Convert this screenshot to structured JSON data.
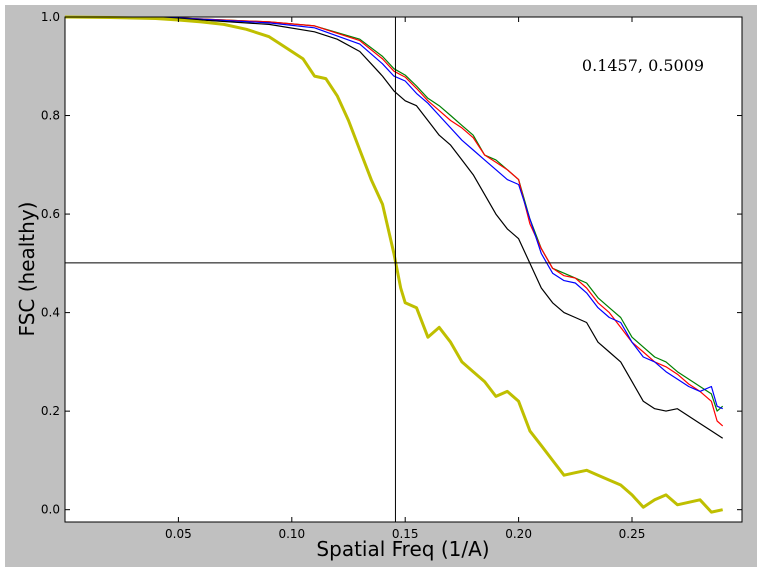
{
  "chart_data": {
    "type": "line",
    "xlabel": "Spatial Freq (1/A)",
    "ylabel": "FSC (healthy)",
    "xlim": [
      0.0,
      0.2985
    ],
    "ylim": [
      -0.025,
      1.0
    ],
    "xticks": [
      0.05,
      0.1,
      0.15,
      0.2,
      0.25
    ],
    "xtick_labels": [
      "0.05",
      "0.10",
      "0.15",
      "0.20",
      "0.25"
    ],
    "yticks": [
      0.0,
      0.2,
      0.4,
      0.6,
      0.8,
      1.0
    ],
    "ytick_labels": [
      "0.0",
      "0.2",
      "0.4",
      "0.6",
      "0.8",
      "1.0"
    ],
    "grid": false,
    "annotation": "0.1457, 0.5009",
    "crosshair": {
      "x": 0.1457,
      "y": 0.5009
    },
    "colors": {
      "background": "#c0c0c0",
      "plot": "#ffffff",
      "axes": "#000000"
    },
    "series": [
      {
        "color": "#008000",
        "linewidth": 1.2,
        "points": [
          [
            0.0,
            1.0
          ],
          [
            0.05,
            0.998
          ],
          [
            0.09,
            0.99
          ],
          [
            0.11,
            0.982
          ],
          [
            0.13,
            0.955
          ],
          [
            0.14,
            0.92
          ],
          [
            0.145,
            0.895
          ],
          [
            0.15,
            0.882
          ],
          [
            0.155,
            0.86
          ],
          [
            0.16,
            0.835
          ],
          [
            0.165,
            0.82
          ],
          [
            0.17,
            0.8
          ],
          [
            0.175,
            0.78
          ],
          [
            0.18,
            0.76
          ],
          [
            0.185,
            0.72
          ],
          [
            0.19,
            0.71
          ],
          [
            0.195,
            0.69
          ],
          [
            0.2,
            0.67
          ],
          [
            0.205,
            0.59
          ],
          [
            0.21,
            0.53
          ],
          [
            0.215,
            0.49
          ],
          [
            0.22,
            0.48
          ],
          [
            0.225,
            0.47
          ],
          [
            0.23,
            0.46
          ],
          [
            0.235,
            0.43
          ],
          [
            0.24,
            0.41
          ],
          [
            0.245,
            0.39
          ],
          [
            0.25,
            0.35
          ],
          [
            0.255,
            0.33
          ],
          [
            0.26,
            0.31
          ],
          [
            0.265,
            0.3
          ],
          [
            0.27,
            0.28
          ],
          [
            0.275,
            0.265
          ],
          [
            0.28,
            0.25
          ],
          [
            0.285,
            0.235
          ],
          [
            0.2875,
            0.2
          ],
          [
            0.29,
            0.21
          ]
        ]
      },
      {
        "color": "#ff0000",
        "linewidth": 1.2,
        "points": [
          [
            0.0,
            1.0
          ],
          [
            0.05,
            0.998
          ],
          [
            0.09,
            0.99
          ],
          [
            0.11,
            0.982
          ],
          [
            0.13,
            0.952
          ],
          [
            0.14,
            0.915
          ],
          [
            0.145,
            0.89
          ],
          [
            0.15,
            0.878
          ],
          [
            0.155,
            0.855
          ],
          [
            0.16,
            0.83
          ],
          [
            0.165,
            0.81
          ],
          [
            0.17,
            0.79
          ],
          [
            0.175,
            0.775
          ],
          [
            0.18,
            0.755
          ],
          [
            0.185,
            0.72
          ],
          [
            0.19,
            0.705
          ],
          [
            0.195,
            0.69
          ],
          [
            0.2,
            0.67
          ],
          [
            0.205,
            0.58
          ],
          [
            0.21,
            0.53
          ],
          [
            0.215,
            0.49
          ],
          [
            0.22,
            0.475
          ],
          [
            0.225,
            0.47
          ],
          [
            0.23,
            0.45
          ],
          [
            0.235,
            0.42
          ],
          [
            0.24,
            0.4
          ],
          [
            0.245,
            0.37
          ],
          [
            0.25,
            0.34
          ],
          [
            0.255,
            0.32
          ],
          [
            0.26,
            0.3
          ],
          [
            0.265,
            0.29
          ],
          [
            0.27,
            0.275
          ],
          [
            0.275,
            0.255
          ],
          [
            0.28,
            0.24
          ],
          [
            0.285,
            0.22
          ],
          [
            0.2875,
            0.18
          ],
          [
            0.29,
            0.17
          ]
        ]
      },
      {
        "color": "#0000ff",
        "linewidth": 1.2,
        "points": [
          [
            0.0,
            1.0
          ],
          [
            0.05,
            0.998
          ],
          [
            0.09,
            0.988
          ],
          [
            0.11,
            0.978
          ],
          [
            0.13,
            0.945
          ],
          [
            0.14,
            0.905
          ],
          [
            0.145,
            0.88
          ],
          [
            0.15,
            0.87
          ],
          [
            0.155,
            0.845
          ],
          [
            0.16,
            0.825
          ],
          [
            0.165,
            0.8
          ],
          [
            0.17,
            0.775
          ],
          [
            0.175,
            0.75
          ],
          [
            0.18,
            0.73
          ],
          [
            0.185,
            0.71
          ],
          [
            0.19,
            0.69
          ],
          [
            0.195,
            0.67
          ],
          [
            0.2,
            0.66
          ],
          [
            0.205,
            0.59
          ],
          [
            0.21,
            0.52
          ],
          [
            0.215,
            0.48
          ],
          [
            0.22,
            0.465
          ],
          [
            0.225,
            0.46
          ],
          [
            0.23,
            0.44
          ],
          [
            0.235,
            0.41
          ],
          [
            0.24,
            0.39
          ],
          [
            0.245,
            0.38
          ],
          [
            0.25,
            0.34
          ],
          [
            0.255,
            0.31
          ],
          [
            0.26,
            0.3
          ],
          [
            0.265,
            0.28
          ],
          [
            0.27,
            0.265
          ],
          [
            0.275,
            0.25
          ],
          [
            0.28,
            0.24
          ],
          [
            0.285,
            0.25
          ],
          [
            0.2875,
            0.21
          ],
          [
            0.29,
            0.205
          ]
        ]
      },
      {
        "color": "#000000",
        "linewidth": 1.2,
        "points": [
          [
            0.0,
            1.0
          ],
          [
            0.05,
            0.997
          ],
          [
            0.09,
            0.985
          ],
          [
            0.11,
            0.97
          ],
          [
            0.12,
            0.955
          ],
          [
            0.13,
            0.93
          ],
          [
            0.135,
            0.905
          ],
          [
            0.14,
            0.88
          ],
          [
            0.145,
            0.85
          ],
          [
            0.15,
            0.83
          ],
          [
            0.155,
            0.82
          ],
          [
            0.16,
            0.79
          ],
          [
            0.165,
            0.76
          ],
          [
            0.17,
            0.74
          ],
          [
            0.175,
            0.71
          ],
          [
            0.18,
            0.68
          ],
          [
            0.185,
            0.64
          ],
          [
            0.19,
            0.6
          ],
          [
            0.195,
            0.57
          ],
          [
            0.2,
            0.55
          ],
          [
            0.205,
            0.5
          ],
          [
            0.21,
            0.45
          ],
          [
            0.215,
            0.42
          ],
          [
            0.22,
            0.4
          ],
          [
            0.225,
            0.39
          ],
          [
            0.23,
            0.38
          ],
          [
            0.235,
            0.34
          ],
          [
            0.24,
            0.32
          ],
          [
            0.245,
            0.3
          ],
          [
            0.25,
            0.26
          ],
          [
            0.255,
            0.22
          ],
          [
            0.26,
            0.205
          ],
          [
            0.265,
            0.2
          ],
          [
            0.27,
            0.205
          ],
          [
            0.275,
            0.19
          ],
          [
            0.28,
            0.175
          ],
          [
            0.285,
            0.16
          ],
          [
            0.29,
            0.145
          ]
        ]
      },
      {
        "color": "#bfbf00",
        "linewidth": 3,
        "points": [
          [
            0.0,
            1.0
          ],
          [
            0.02,
            0.999
          ],
          [
            0.04,
            0.997
          ],
          [
            0.05,
            0.994
          ],
          [
            0.06,
            0.99
          ],
          [
            0.07,
            0.985
          ],
          [
            0.08,
            0.975
          ],
          [
            0.09,
            0.96
          ],
          [
            0.095,
            0.945
          ],
          [
            0.1,
            0.93
          ],
          [
            0.105,
            0.915
          ],
          [
            0.11,
            0.88
          ],
          [
            0.115,
            0.875
          ],
          [
            0.12,
            0.84
          ],
          [
            0.125,
            0.79
          ],
          [
            0.13,
            0.73
          ],
          [
            0.135,
            0.67
          ],
          [
            0.14,
            0.62
          ],
          [
            0.145,
            0.52
          ],
          [
            0.148,
            0.45
          ],
          [
            0.15,
            0.42
          ],
          [
            0.155,
            0.41
          ],
          [
            0.16,
            0.35
          ],
          [
            0.165,
            0.37
          ],
          [
            0.17,
            0.34
          ],
          [
            0.175,
            0.3
          ],
          [
            0.18,
            0.28
          ],
          [
            0.185,
            0.26
          ],
          [
            0.19,
            0.23
          ],
          [
            0.195,
            0.24
          ],
          [
            0.2,
            0.22
          ],
          [
            0.205,
            0.16
          ],
          [
            0.21,
            0.13
          ],
          [
            0.215,
            0.1
          ],
          [
            0.22,
            0.07
          ],
          [
            0.225,
            0.075
          ],
          [
            0.23,
            0.08
          ],
          [
            0.235,
            0.07
          ],
          [
            0.24,
            0.06
          ],
          [
            0.245,
            0.05
          ],
          [
            0.25,
            0.03
          ],
          [
            0.255,
            0.005
          ],
          [
            0.26,
            0.02
          ],
          [
            0.265,
            0.03
          ],
          [
            0.27,
            0.01
          ],
          [
            0.275,
            0.015
          ],
          [
            0.28,
            0.02
          ],
          [
            0.285,
            -0.005
          ],
          [
            0.29,
            0.0
          ]
        ]
      }
    ]
  }
}
